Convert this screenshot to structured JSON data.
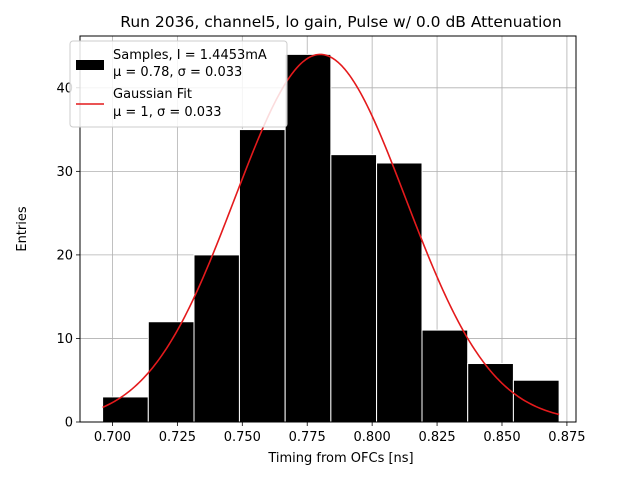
{
  "chart_data": {
    "type": "bar",
    "title": "Run 2036, channel5, lo gain, Pulse w/ 0.0 dB Attenuation",
    "xlabel": "Timing from OFCs [ns]",
    "ylabel": "Entries",
    "xlim": [
      0.6875,
      0.8785
    ],
    "ylim": [
      0,
      46.2
    ],
    "grid": true,
    "legend_position": "top-left",
    "x_ticks": [
      {
        "value": 0.7,
        "label": "0.700"
      },
      {
        "value": 0.725,
        "label": "0.725"
      },
      {
        "value": 0.75,
        "label": "0.750"
      },
      {
        "value": 0.775,
        "label": "0.775"
      },
      {
        "value": 0.8,
        "label": "0.800"
      },
      {
        "value": 0.825,
        "label": "0.825"
      },
      {
        "value": 0.85,
        "label": "0.850"
      },
      {
        "value": 0.875,
        "label": "0.875"
      }
    ],
    "y_ticks": [
      {
        "value": 0,
        "label": "0"
      },
      {
        "value": 10,
        "label": "10"
      },
      {
        "value": 20,
        "label": "20"
      },
      {
        "value": 30,
        "label": "30"
      },
      {
        "value": 40,
        "label": "40"
      }
    ],
    "histogram": {
      "name": "Samples, I = 1.4453mA",
      "stats": "μ = 0.78, σ = 0.033",
      "bin_edges": [
        0.6962,
        0.7138,
        0.7314,
        0.7489,
        0.7665,
        0.7841,
        0.8017,
        0.8192,
        0.8368,
        0.8544,
        0.872
      ],
      "counts": [
        3,
        12,
        20,
        35,
        44,
        32,
        31,
        11,
        7,
        5
      ],
      "color": "#000000"
    },
    "fit": {
      "name": "Gaussian Fit",
      "stats": "μ = 1, σ = 0.033",
      "mu": 0.78,
      "sigma": 0.033,
      "amplitude": 44,
      "x_range": [
        0.6962,
        0.872
      ],
      "color": "#e41a1c"
    }
  }
}
